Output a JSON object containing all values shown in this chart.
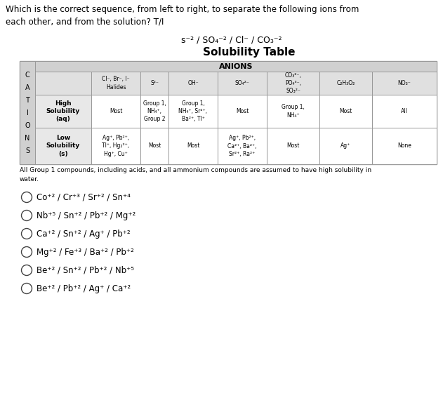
{
  "title_question": "Which is the correct sequence, from left to right, to separate the following ions from\neach other, and from the solution? T/I",
  "subtitle": "s⁻² / SO₄⁻² / Cl⁻ / CO₃⁻²",
  "table_title": "Solubility Table",
  "anions_header": "ANIONS",
  "cations_label": "C\nA\nT\nI\nO\nN\nS",
  "col_headers": [
    "Cl⁻, Br⁻, I⁻\nHalides",
    "S²⁻",
    "OH⁻",
    "SO₄²⁻",
    "CO₃²⁻,\nPO₄³⁻,\nSO₃²⁻",
    "C₂H₃O₂",
    "NO₃⁻"
  ],
  "row1_label": "High\nSolubility\n(aq)",
  "row1_data": [
    "Most",
    "Group 1,\nNH₄⁺,\nGroup 2",
    "Group 1,\nNH₄⁺, Sr²⁺,\nBa²⁺, Tl⁺",
    "Most",
    "Group 1,\nNH₄⁺",
    "Most",
    "All"
  ],
  "row2_label": "Low\nSolubility\n(s)",
  "row2_data": [
    "Ag⁺, Pb²⁺,\nTl⁺, Hg₂²⁺,\nHg⁺, Cu⁺",
    "Most",
    "Most",
    "Ag⁺, Pb²⁺,\nCa²⁺, Ba²⁺,\nSr²⁺, Ra²⁺",
    "Most",
    "Ag⁺",
    "None"
  ],
  "footnote": "All Group 1 compounds, including acids, and all ammonium compounds are assumed to have high solubility in\nwater.",
  "options": [
    "Co⁺² / Cr⁺³ / Sr⁺² / Sn⁺⁴",
    "Nb⁺⁵ / Sn⁺² / Pb⁺² / Mg⁺²",
    "Ca⁺² / Sn⁺² / Ag⁺ / Pb⁺²",
    "Mg⁺² / Fe⁺³ / Ba⁺² / Pb⁺²",
    "Be⁺² / Sn⁺² / Pb⁺² / Nb⁺⁵",
    "Be⁺² / Pb⁺² / Ag⁺ / Ca⁺²"
  ],
  "bg_color": "#ffffff",
  "table_header_bg": "#d0d0d0",
  "table_subheader_bg": "#e0e0e0",
  "table_rowlabel_bg": "#e8e8e8",
  "table_cell_bg": "#ffffff",
  "table_border_color": "#999999"
}
